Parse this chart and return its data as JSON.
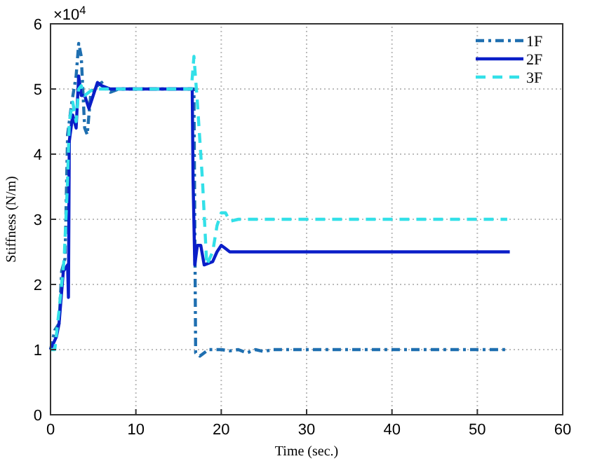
{
  "chart_data": {
    "type": "line",
    "xlabel": "Time (sec.)",
    "ylabel": "Stiffness (N/m)",
    "annotations": [
      "×10$^{4}$"
    ],
    "xlim": [
      0,
      60
    ],
    "xticks": [
      0,
      10,
      20,
      30,
      40,
      50,
      60
    ],
    "ylim": [
      0,
      6
    ],
    "yticks": [
      0,
      1,
      2,
      3,
      4,
      5,
      6
    ],
    "grid": true,
    "legend": "top right",
    "series": [
      {
        "name": "1F",
        "color": "#1f6fb0",
        "line_style": "dashdot",
        "x": [
          0,
          0.5,
          1,
          1.3,
          1.7,
          2,
          2.5,
          3,
          3.3,
          3.6,
          4,
          4.3,
          4.7,
          5,
          6,
          6.5,
          7,
          8,
          16.8,
          17,
          17.5,
          18.5,
          20,
          21,
          22,
          23,
          24,
          25,
          26,
          53.5
        ],
        "values": [
          1.0,
          1.3,
          1.4,
          2.2,
          2.4,
          4.3,
          4.8,
          5.2,
          5.7,
          5.5,
          4.4,
          4.3,
          4.9,
          5.0,
          5.1,
          5.0,
          4.95,
          5.0,
          5.0,
          0.95,
          0.9,
          1.0,
          1.0,
          0.98,
          1.0,
          0.95,
          1.0,
          0.97,
          1.0,
          1.0
        ]
      },
      {
        "name": "2F",
        "color": "#0a1ec8",
        "line_style": "solid",
        "x": [
          0,
          0.7,
          1,
          1.5,
          2,
          2.1,
          2.2,
          2.6,
          3,
          3.3,
          3.6,
          4,
          4.5,
          5,
          5.5,
          6,
          7,
          16.6,
          16.7,
          16.9,
          17.2,
          17.6,
          18,
          19,
          19.5,
          20,
          20.5,
          21,
          30,
          53.8
        ],
        "values": [
          1.0,
          1.2,
          1.4,
          2.2,
          2.3,
          1.8,
          4.2,
          4.6,
          4.4,
          5.2,
          4.9,
          4.9,
          4.7,
          4.9,
          5.1,
          5.05,
          5.0,
          5.0,
          3.6,
          2.3,
          2.6,
          2.6,
          2.3,
          2.35,
          2.5,
          2.6,
          2.55,
          2.5,
          2.5,
          2.5
        ]
      },
      {
        "name": "3F",
        "color": "#33e0e8",
        "line_style": "dashed",
        "x": [
          0,
          0.5,
          1,
          1.6,
          2,
          2.2,
          2.6,
          3,
          3.3,
          3.6,
          4,
          5,
          16.5,
          16.8,
          17.2,
          17.8,
          18.3,
          19,
          19.5,
          20,
          20.5,
          21,
          22,
          53.5
        ],
        "values": [
          1.0,
          1.0,
          1.6,
          2.4,
          3.6,
          4.5,
          4.8,
          4.5,
          5.0,
          5.05,
          4.9,
          5.0,
          5.0,
          5.5,
          4.8,
          3.6,
          2.3,
          2.5,
          2.9,
          3.1,
          3.1,
          2.97,
          3.0,
          3.0
        ]
      }
    ]
  }
}
